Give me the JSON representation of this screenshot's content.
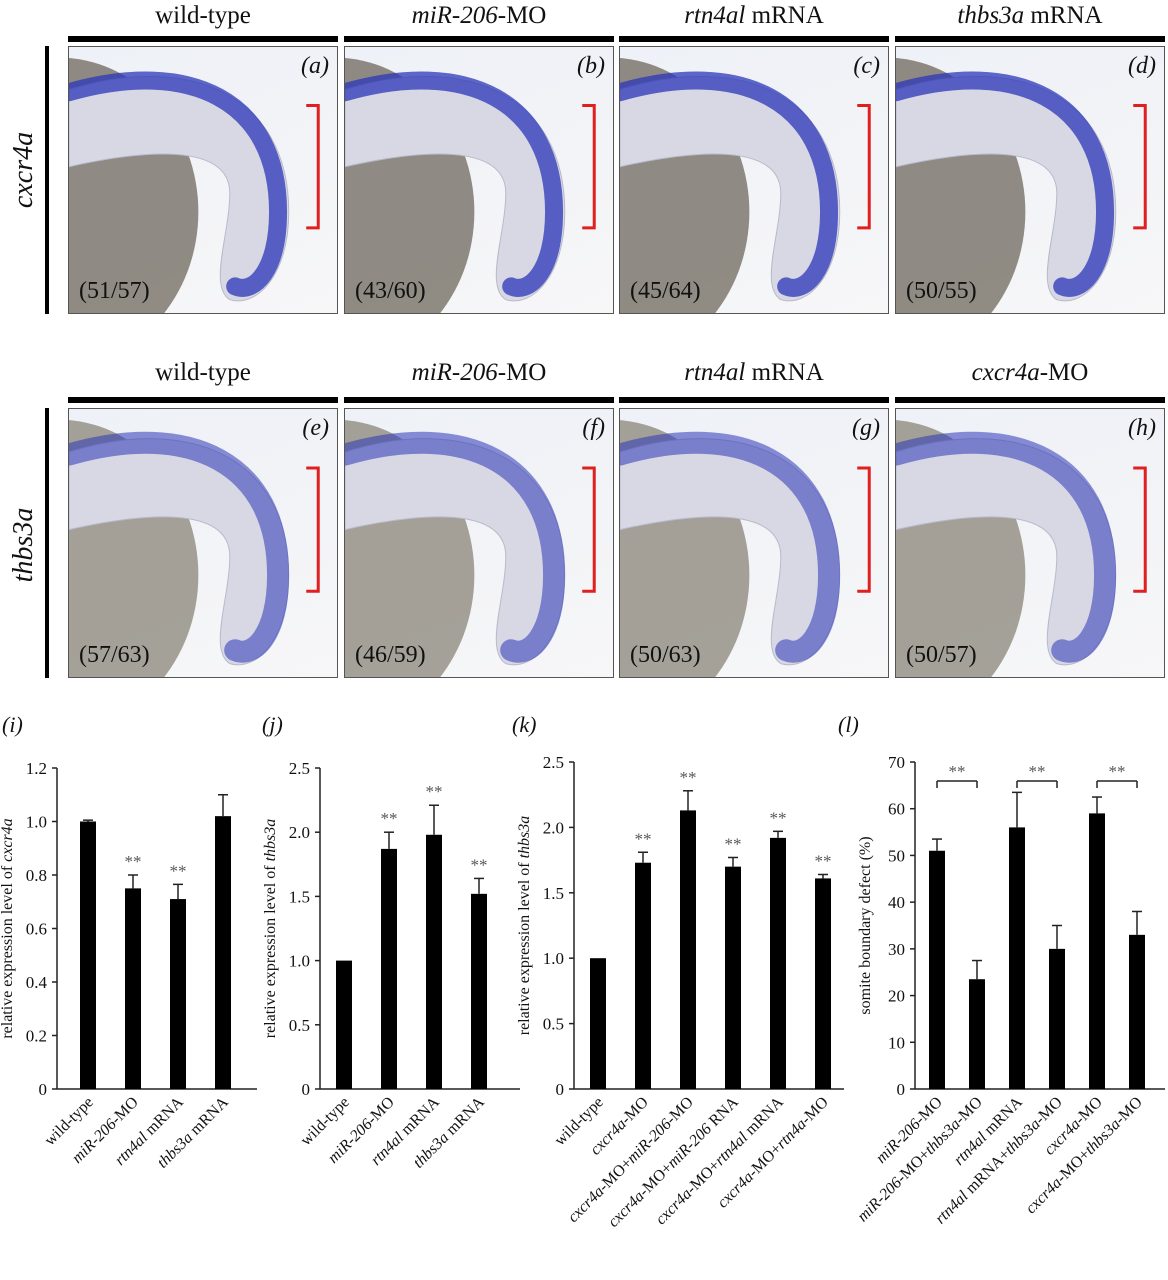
{
  "rows": [
    {
      "label": "cxcr4a",
      "panels": [
        {
          "letter": "(a)",
          "title_parts": [
            [
              "wild-type",
              false
            ]
          ],
          "count": "(51/57)"
        },
        {
          "letter": "(b)",
          "title_parts": [
            [
              "miR-206",
              true
            ],
            [
              "-MO",
              false
            ]
          ],
          "count": "(43/60)"
        },
        {
          "letter": "(c)",
          "title_parts": [
            [
              "rtn4al",
              true
            ],
            [
              " mRNA",
              false
            ]
          ],
          "count": "(45/64)"
        },
        {
          "letter": "(d)",
          "title_parts": [
            [
              "thbs3a",
              true
            ],
            [
              " mRNA",
              false
            ]
          ],
          "count": "(50/55)"
        }
      ]
    },
    {
      "label": "thbs3a",
      "panels": [
        {
          "letter": "(e)",
          "title_parts": [
            [
              "wild-type",
              false
            ]
          ],
          "count": "(57/63)"
        },
        {
          "letter": "(f)",
          "title_parts": [
            [
              "miR-206",
              true
            ],
            [
              "-MO",
              false
            ]
          ],
          "count": "(46/59)"
        },
        {
          "letter": "(g)",
          "title_parts": [
            [
              "rtn4al",
              true
            ],
            [
              " mRNA",
              false
            ]
          ],
          "count": "(50/63)"
        },
        {
          "letter": "(h)",
          "title_parts": [
            [
              "cxcr4a",
              true
            ],
            [
              "-MO",
              false
            ]
          ],
          "count": "(50/57)"
        }
      ]
    }
  ],
  "colors": {
    "stain": "#2b36b8",
    "bracket": "#e02020",
    "bar": "#000000"
  },
  "chart_data": [
    {
      "label": "(i)",
      "type": "bar",
      "ylabel_parts": [
        [
          "relative expression level of ",
          false
        ],
        [
          "cxcr4a",
          true
        ]
      ],
      "ylim": [
        0,
        1.2
      ],
      "ticks": [
        "0",
        "0.2",
        "0.4",
        "0.6",
        "0.8",
        "1.0",
        "1.2"
      ],
      "categories": [
        [
          [
            "wild-type",
            false
          ]
        ],
        [
          [
            "miR-206",
            true
          ],
          [
            "-MO",
            false
          ]
        ],
        [
          [
            "rtn4al",
            true
          ],
          [
            " mRNA",
            false
          ]
        ],
        [
          [
            "thbs3a",
            true
          ],
          [
            " mRNA",
            false
          ]
        ]
      ],
      "values": [
        1.0,
        0.75,
        0.71,
        1.02
      ],
      "errors": [
        0.005,
        0.05,
        0.055,
        0.08
      ],
      "significance": [
        "",
        "**",
        "**",
        ""
      ],
      "brackets": []
    },
    {
      "label": "(j)",
      "type": "bar",
      "ylabel_parts": [
        [
          "relative expression level of ",
          false
        ],
        [
          "thbs3a",
          true
        ]
      ],
      "ylim": [
        0,
        2.5
      ],
      "ticks": [
        "0",
        "0.5",
        "1.0",
        "1.5",
        "2.0",
        "2.5"
      ],
      "categories": [
        [
          [
            "wild-type",
            false
          ]
        ],
        [
          [
            "miR-206",
            true
          ],
          [
            "-MO",
            false
          ]
        ],
        [
          [
            "rtn4al",
            true
          ],
          [
            " mRNA",
            false
          ]
        ],
        [
          [
            "thbs3a",
            true
          ],
          [
            " mRNA",
            false
          ]
        ]
      ],
      "values": [
        1.0,
        1.87,
        1.98,
        1.52
      ],
      "errors": [
        0,
        0.13,
        0.23,
        0.12
      ],
      "significance": [
        "",
        "**",
        "**",
        "**"
      ],
      "brackets": []
    },
    {
      "label": "(k)",
      "type": "bar",
      "ylabel_parts": [
        [
          "relative expression level of ",
          false
        ],
        [
          "thbs3a",
          true
        ]
      ],
      "ylim": [
        0,
        2.5
      ],
      "ticks": [
        "0",
        "0.5",
        "1.0",
        "1.5",
        "2.0",
        "2.5"
      ],
      "categories": [
        [
          [
            "wild-type",
            false
          ]
        ],
        [
          [
            "cxcr4a",
            true
          ],
          [
            "-MO",
            false
          ]
        ],
        [
          [
            "cxcr4a",
            true
          ],
          [
            "-MO+",
            false
          ],
          [
            "miR-206",
            true
          ],
          [
            "-MO",
            false
          ]
        ],
        [
          [
            "cxcr4a",
            true
          ],
          [
            "-MO+",
            false
          ],
          [
            "miR-206",
            true
          ],
          [
            " RNA",
            false
          ]
        ],
        [
          [
            "cxcr4a",
            true
          ],
          [
            "-MO+",
            false
          ],
          [
            "rtn4al",
            true
          ],
          [
            " mRNA",
            false
          ]
        ],
        [
          [
            "cxcr4a",
            true
          ],
          [
            "-MO+",
            false
          ],
          [
            "rtn4a",
            true
          ],
          [
            "-MO",
            false
          ]
        ]
      ],
      "values": [
        1.0,
        1.73,
        2.13,
        1.7,
        1.92,
        1.61
      ],
      "errors": [
        0,
        0.08,
        0.15,
        0.07,
        0.05,
        0.03
      ],
      "significance": [
        "",
        "**",
        "**",
        "**",
        "**",
        "**"
      ],
      "brackets": []
    },
    {
      "label": "(l)",
      "type": "bar",
      "ylabel_parts": [
        [
          "somite boundary defect (%)",
          false
        ]
      ],
      "ylim": [
        0,
        70
      ],
      "ticks": [
        "0",
        "10",
        "20",
        "30",
        "40",
        "50",
        "60",
        "70"
      ],
      "categories": [
        [
          [
            "miR-206",
            true
          ],
          [
            "-MO",
            false
          ]
        ],
        [
          [
            "miR-206",
            true
          ],
          [
            "-MO+",
            false
          ],
          [
            "thbs3a",
            true
          ],
          [
            "-MO",
            false
          ]
        ],
        [
          [
            "rtn4al",
            true
          ],
          [
            " mRNA",
            false
          ]
        ],
        [
          [
            "rtn4al",
            true
          ],
          [
            " mRNA+",
            false
          ],
          [
            "thbs3a",
            true
          ],
          [
            "-MO",
            false
          ]
        ],
        [
          [
            "cxcr4a",
            true
          ],
          [
            "-MO",
            false
          ]
        ],
        [
          [
            "cxcr4a",
            true
          ],
          [
            "-MO+",
            false
          ],
          [
            "thbs3a",
            true
          ],
          [
            "-MO",
            false
          ]
        ]
      ],
      "values": [
        51,
        23.5,
        56,
        30,
        59,
        33
      ],
      "errors": [
        2.5,
        4,
        7.5,
        5,
        3.5,
        5
      ],
      "significance": [
        "",
        "",
        "",
        "",
        "",
        ""
      ],
      "brackets": [
        {
          "from": 0,
          "to": 1,
          "label": "**"
        },
        {
          "from": 2,
          "to": 3,
          "label": "**"
        },
        {
          "from": 4,
          "to": 5,
          "label": "**"
        }
      ]
    }
  ]
}
